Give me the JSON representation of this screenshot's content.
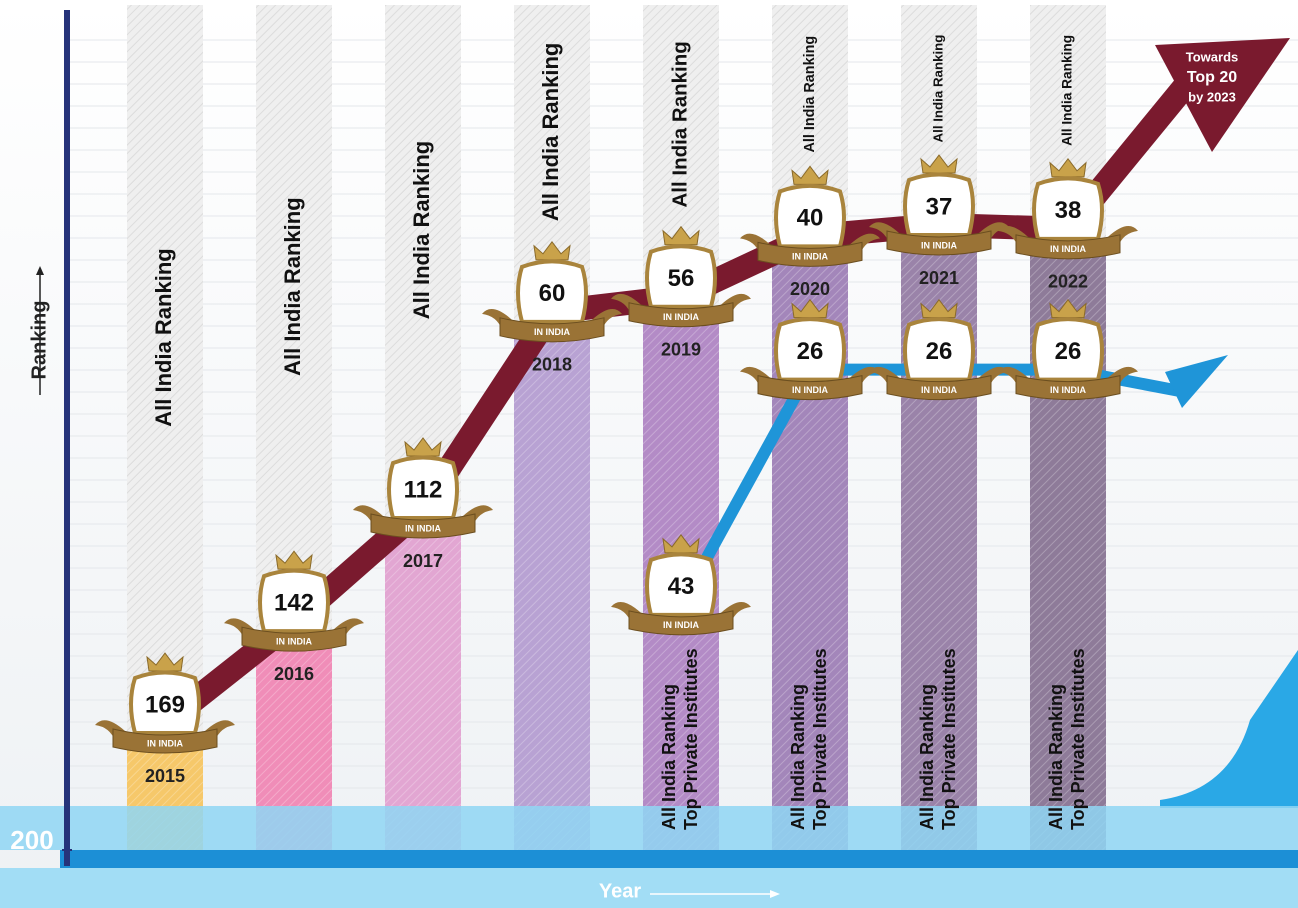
{
  "chart_data": {
    "type": "ranking",
    "y_label": "Ranking",
    "x_label": "Year",
    "categories": [
      "2015",
      "2016",
      "2017",
      "2018",
      "2019",
      "2020",
      "2021",
      "2022"
    ],
    "series": [
      {
        "name": "All India Ranking",
        "color": "#7a1a2e",
        "values": [
          169,
          142,
          112,
          60,
          56,
          40,
          37,
          38
        ]
      },
      {
        "name": "Top Private Institutes",
        "color": "#1f95d8",
        "axis": "y2",
        "values": [
          null,
          null,
          null,
          null,
          43,
          26,
          26,
          26
        ]
      }
    ],
    "bar_colors": [
      "#f6c86a",
      "#f08db8",
      "#e2a6d2",
      "#b8a2d3",
      "#b38bc6",
      "#a386ba",
      "#9a83a9",
      "#8e7b99"
    ],
    "badge_label": "IN INDIA",
    "annotation": [
      "Towards",
      "Top 20",
      "by 2023"
    ],
    "ylim": [
      200,
      -20
    ],
    "yticks": [
      200
    ],
    "y2lim": [
      60,
      0
    ]
  }
}
